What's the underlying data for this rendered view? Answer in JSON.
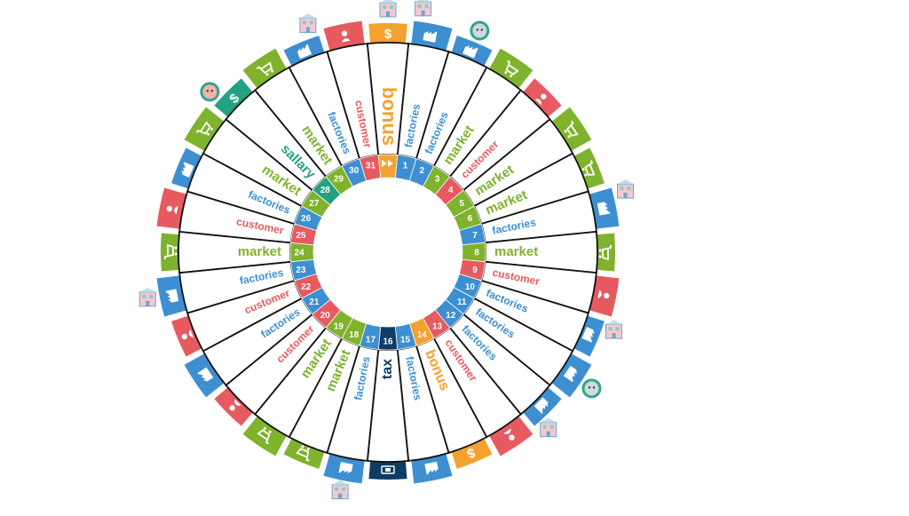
{
  "board": {
    "colors": {
      "factories": "#3d8fd1",
      "market": "#7fb22d",
      "customer": "#e65a60",
      "bonus": "#f3a22f",
      "salary": "#24a083",
      "tax": "#0f3b66",
      "start": "#f3a22f"
    },
    "center_icon": "fast-forward-icon",
    "spaces": [
      {
        "number": "1",
        "label": "factories",
        "type": "factories",
        "icon": "factory-icon",
        "extra": "building-icon"
      },
      {
        "number": "2",
        "label": "factories",
        "type": "factories",
        "icon": "factory-icon",
        "extra": "sheep-badge-icon"
      },
      {
        "number": "3",
        "label": "market",
        "type": "market",
        "icon": "cart-icon",
        "extra": ""
      },
      {
        "number": "4",
        "label": "customer",
        "type": "customer",
        "icon": "person-icon",
        "extra": ""
      },
      {
        "number": "5",
        "label": "market",
        "type": "market",
        "icon": "cart-icon",
        "extra": ""
      },
      {
        "number": "6",
        "label": "market",
        "type": "market",
        "icon": "cart-icon",
        "extra": ""
      },
      {
        "number": "7",
        "label": "factories",
        "type": "factories",
        "icon": "factory-icon",
        "extra": "building-icon"
      },
      {
        "number": "8",
        "label": "market",
        "type": "market",
        "icon": "cart-icon",
        "extra": ""
      },
      {
        "number": "9",
        "label": "customer",
        "type": "customer",
        "icon": "person-icon",
        "extra": ""
      },
      {
        "number": "10",
        "label": "factories",
        "type": "factories",
        "icon": "factory-icon",
        "extra": "building-icon"
      },
      {
        "number": "11",
        "label": "factories",
        "type": "factories",
        "icon": "factory-icon",
        "extra": "person-badge-icon"
      },
      {
        "number": "12",
        "label": "factories",
        "type": "factories",
        "icon": "factory-icon",
        "extra": "building-icon"
      },
      {
        "number": "13",
        "label": "customer",
        "type": "customer",
        "icon": "person-icon",
        "extra": ""
      },
      {
        "number": "14",
        "label": "bonus",
        "type": "bonus",
        "icon": "dollar-icon",
        "extra": ""
      },
      {
        "number": "15",
        "label": "factories",
        "type": "factories",
        "icon": "factory-icon",
        "extra": ""
      },
      {
        "number": "16",
        "label": "tax",
        "type": "tax",
        "icon": "tax-icon",
        "extra": ""
      },
      {
        "number": "17",
        "label": "factories",
        "type": "factories",
        "icon": "factory-icon",
        "extra": "building-icon"
      },
      {
        "number": "18",
        "label": "market",
        "type": "market",
        "icon": "cart-icon",
        "extra": ""
      },
      {
        "number": "19",
        "label": "market",
        "type": "market",
        "icon": "cart-icon",
        "extra": ""
      },
      {
        "number": "20",
        "label": "customer",
        "type": "customer",
        "icon": "person-icon",
        "extra": ""
      },
      {
        "number": "21",
        "label": "factories",
        "type": "factories",
        "icon": "factory-icon",
        "extra": ""
      },
      {
        "number": "22",
        "label": "customer",
        "type": "customer",
        "icon": "person-icon",
        "extra": ""
      },
      {
        "number": "23",
        "label": "factories",
        "type": "factories",
        "icon": "factory-icon",
        "extra": "building-icon"
      },
      {
        "number": "24",
        "label": "market",
        "type": "market",
        "icon": "cart-icon",
        "extra": ""
      },
      {
        "number": "25",
        "label": "customer",
        "type": "customer",
        "icon": "person-icon",
        "extra": ""
      },
      {
        "number": "26",
        "label": "factories",
        "type": "factories",
        "icon": "factory-icon",
        "extra": ""
      },
      {
        "number": "27",
        "label": "market",
        "type": "market",
        "icon": "cart-icon",
        "extra": ""
      },
      {
        "number": "28",
        "label": "sallary",
        "type": "salary",
        "icon": "dollar-icon",
        "extra": "pig-badge-icon"
      },
      {
        "number": "29",
        "label": "market",
        "type": "market",
        "icon": "cart-icon",
        "extra": ""
      },
      {
        "number": "30",
        "label": "factories",
        "type": "factories",
        "icon": "factory-icon",
        "extra": "building-icon"
      },
      {
        "number": "31",
        "label": "customer",
        "type": "customer",
        "icon": "person-icon",
        "extra": ""
      },
      {
        "number": "",
        "label": "bonus",
        "type": "start",
        "icon": "dollar-icon",
        "extra": "building-icon"
      }
    ]
  }
}
